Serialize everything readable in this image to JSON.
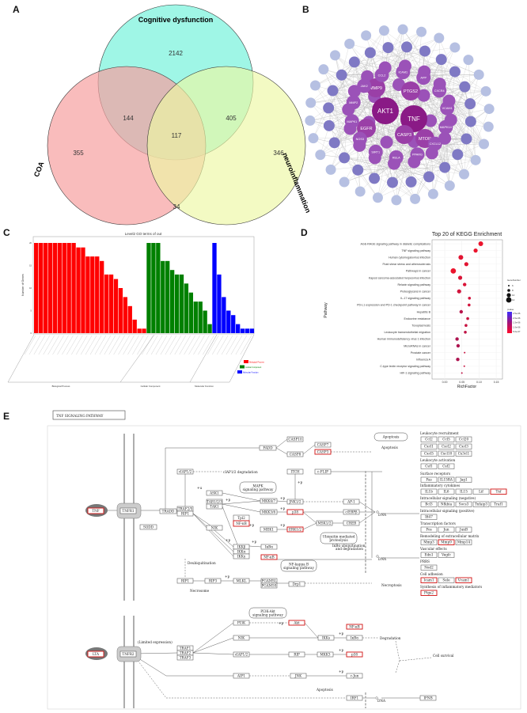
{
  "panels": {
    "a": "A",
    "b": "B",
    "c": "C",
    "d": "D",
    "e": "E"
  },
  "venn": {
    "sets": [
      "Cognitive dysfunction",
      "COA",
      "neuroinflammation"
    ],
    "only_cognitive": "2142",
    "only_coa": "355",
    "only_neuro": "346",
    "cog_coa": "144",
    "cog_neuro": "405",
    "coa_neuro": "34",
    "all_three": "117",
    "colors": {
      "cognitive": "#7ff3dd",
      "coa": "#f7a0a0",
      "neuro": "#ecf7a3"
    }
  },
  "network": {
    "hubs": [
      "AKT1",
      "TNF"
    ],
    "level2": [
      "EGFR",
      "CASP3",
      "MTOR",
      "PTGS2",
      "MMP9"
    ],
    "level3": [
      "ICAM1",
      "APP",
      "CXCR4",
      "VCAM1",
      "MAPK14",
      "CXCL12",
      "PPARG",
      "RELA",
      "SIRT1",
      "NOS3",
      "MAPK1",
      "MMP2",
      "JAK2",
      "CCL2"
    ],
    "colors": {
      "hub": "#8a1a86",
      "mid": "#9b52b8",
      "outer": "#7f79c4",
      "faint": "#b6c0e2"
    }
  },
  "chart_data": [
    {
      "type": "bar",
      "title": "Level2 GO terms of out",
      "ylabel": "Number of Genes",
      "xlabel": "",
      "ylim": [
        0,
        20
      ],
      "yticks": [
        "0",
        "5",
        "10",
        "15",
        "20"
      ],
      "series": [
        {
          "name": "Biological Process",
          "color": "#ff0000",
          "values": [
            20,
            20,
            20,
            20,
            20,
            20,
            20,
            20,
            20,
            19,
            19,
            17,
            17,
            17,
            16,
            13,
            13,
            12,
            10,
            8,
            6,
            3,
            1,
            1
          ]
        },
        {
          "name": "Cellular Component",
          "color": "#008000",
          "values": [
            20,
            20,
            20,
            16,
            16,
            14,
            13,
            13,
            11,
            9,
            7,
            7,
            5,
            2
          ]
        },
        {
          "name": "Molecular Function",
          "color": "#0000ff",
          "values": [
            20,
            13,
            8,
            5,
            4,
            2,
            1,
            1,
            1
          ]
        }
      ],
      "group_labels": [
        "Biological Process",
        "Cellular Component",
        "Molecular Function"
      ],
      "legend": [
        "Biological Process",
        "Cellular Component",
        "Molecular Function"
      ],
      "legend_position": "bottom-right"
    },
    {
      "type": "scatter",
      "title": "Top 20 of KEGG Enrichment",
      "xlabel": "RichFactor",
      "ylabel": "Pathway",
      "xlim": [
        -0.03,
        0.165
      ],
      "xticks": [
        "0.00",
        "0.05",
        "0.10",
        "0.15"
      ],
      "grid": true,
      "categories": [
        "AGE-RAGE signaling pathway in diabetic complications",
        "TNF signaling pathway",
        "Human cytomegalovirus infection",
        "Fluid shear stress and atherosclerosis",
        "Pathways in cancer",
        "Kaposi sarcoma-associated herpesvirus infection",
        "Relaxin signaling pathway",
        "Proteoglycans in cancer",
        "IL-17 signaling pathway",
        "PD-L1 expression and PD-1 checkpoint pathway in cancer",
        "Hepatitis B",
        "Endocrine resistance",
        "Toxoplasmosis",
        "Leukocyte transendothelial migration",
        "Human immunodeficiency virus 1 infection",
        "MicroRNAs in cancer",
        "Prostate cancer",
        "Influenza A",
        "C-type lectin receptor signaling pathway",
        "HIF-1 signaling pathway"
      ],
      "rich_factor": [
        0.105,
        0.09,
        0.047,
        0.063,
        0.025,
        0.045,
        0.058,
        0.042,
        0.072,
        0.071,
        0.048,
        0.067,
        0.062,
        0.06,
        0.036,
        0.039,
        0.058,
        0.038,
        0.057,
        0.05
      ],
      "gene_number": [
        11,
        10,
        11,
        10,
        12,
        10,
        9,
        10,
        8,
        8,
        9,
        8,
        8,
        8,
        9,
        9,
        6,
        9,
        6,
        6
      ],
      "pvalue": [
        2e-07,
        2e-07,
        3e-07,
        3e-07,
        2e-07,
        4e-07,
        4e-07,
        5e-07,
        5e-07,
        5e-07,
        8e-07,
        6e-07,
        6e-07,
        7e-07,
        9e-07,
        9e-07,
        6e-07,
        9e-07,
        6e-07,
        7e-07
      ],
      "size_legend_title": "GeneNumber",
      "size_legend": [
        "6",
        "8",
        "10",
        "12"
      ],
      "color_legend_title": "pvalue",
      "color_legend": [
        "2.5e-06",
        "2.0e-06",
        "1.5e-06",
        "1.0e-06",
        "5.0e-07"
      ]
    }
  ],
  "pathway": {
    "title": "TNF SIGNALING PATHWAY",
    "nodes": {
      "tnf": "TNF",
      "tnfr1": "TNFR1",
      "sodd": "SODD",
      "tradd": "TRADD",
      "traf25": "TRAF2/5",
      "rip1": "RIP1",
      "ciap12": "cIAP1/2",
      "fadd": "FADD",
      "ask1": "ASK1",
      "tab123": "TAB1/2/3",
      "tak1": "TAK1",
      "mkk47": "MKK4/7",
      "mkk36": "MKK3/6",
      "mek1": "MEK1",
      "tpl2": "Tpl2",
      "nfkb1": "NF-κB",
      "nik": "NIK",
      "ikkb": "IKKβ",
      "ikka": "IKKα",
      "ikkg": "IKKγ",
      "ikba": "IκBα",
      "nfkb2": "NF-κB",
      "casp10": "CASP10",
      "casp8": "CASP8",
      "casp7": "CASP7",
      "casp3": "CASP3",
      "itch": "ITCH",
      "cflip": "c-FLIP",
      "jnk12": "JNK1/2",
      "ap1": "AP-1",
      "p38a": "p38",
      "cebpb": "c/EBPβ",
      "msk12": "MSK1/2",
      "creb": "CREB",
      "erk12": "ERK1/2",
      "rip1b": "RIP1",
      "rip3": "RIP3",
      "mlkl": "MLKL",
      "pgam5l": "PGAM5L",
      "pgam5s": "PGAM5S",
      "drp1": "Drp1",
      "pi3k": "PI3K",
      "akt": "Akt",
      "nik2": "NIK",
      "lta": "LTA",
      "tnfr2": "TNFR2",
      "traf1": "TRAF1",
      "traf2": "TRAF2",
      "traf3": "TRAF3",
      "ciap12b": "cIAP1/2",
      "rip": "RIP",
      "aip1": "AIP1",
      "jnk": "JNK",
      "nfkb3": "NF-κB",
      "ikk": "IKKs",
      "ikba2": "IκBα",
      "mkk3": "MKK3",
      "p38b": "p38",
      "cjun": "c-Jun",
      "irf1": "IRF1",
      "ifnb": "IFNB"
    },
    "sub_pathways": {
      "mapk": [
        "MAPK",
        "signaling pathway"
      ],
      "ubiq": [
        "Ubiquitin mediated",
        "proteolysis"
      ],
      "apop": [
        "Apoptosis"
      ],
      "nfkbp": [
        "NF-kappa B",
        "signaling pathway"
      ],
      "pi3kp": [
        "PI3K-Akt",
        "signaling pathway"
      ]
    },
    "notes": {
      "ciap_deg": "cIAP1/2 degradation",
      "apoptosis1": "Apoptosis",
      "ikba_deg1": "IκBα ubiquitination",
      "ikba_deg2": "and degradation",
      "deubiq": "Deubiquitination",
      "necrosome": "Necrosome",
      "necroptosis": "Necroptosis",
      "limited": "(Limited expression)",
      "degradation": "Degradation",
      "survival": "Cell survival",
      "apoptosis2": "Apoptosis",
      "dna": "DNA",
      "plus_p": "+p",
      "plus_u": "+u"
    },
    "gene_groups": [
      {
        "title": "Leukocyte recruitment",
        "rows": [
          [
            {
              "g": "Ccl2"
            },
            {
              "g": "Ccl5"
            },
            {
              "g": "Ccl20"
            }
          ],
          [
            {
              "g": "Cxcl1"
            },
            {
              "g": "Cxcl2"
            },
            {
              "g": "Cxcl3"
            }
          ],
          [
            {
              "g": "Cxcl5"
            },
            {
              "g": "Cxcl10"
            },
            {
              "g": "Cx3cl1"
            }
          ]
        ]
      },
      {
        "title": "Leukocyte activation",
        "rows": [
          [
            {
              "g": "Csf1"
            },
            {
              "g": "Csf2"
            }
          ]
        ]
      },
      {
        "title": "Surface receptors",
        "rows": [
          [
            {
              "g": "Fas"
            },
            {
              "g": "IL15RA"
            },
            {
              "g": "Jag1"
            }
          ]
        ]
      },
      {
        "title": "Inflammatory cytokines",
        "rows": [
          [
            {
              "g": "IL1b"
            },
            {
              "g": "IL6"
            },
            {
              "g": "IL15"
            },
            {
              "g": "Lif"
            },
            {
              "g": "Tnf",
              "red": true
            }
          ]
        ]
      },
      {
        "title": "Intracellular signaling (negative)",
        "rows": [
          [
            {
              "g": "Bcl3"
            },
            {
              "g": "Nfkbia"
            },
            {
              "g": "Socs3"
            },
            {
              "g": "Tnfaip3"
            },
            {
              "g": "Traf1"
            }
          ]
        ]
      },
      {
        "title": "Intracellular signaling (positive)",
        "rows": [
          [
            {
              "g": "Ifi47"
            }
          ]
        ]
      },
      {
        "title": "Transcription factors",
        "rows": [
          [
            {
              "g": "Fos"
            },
            {
              "g": "Jun"
            },
            {
              "g": "JunB"
            }
          ]
        ]
      },
      {
        "title": "Remodeling of extracellular matrix",
        "rows": [
          [
            {
              "g": "Mmp3"
            },
            {
              "g": "Mmp9",
              "red": true
            },
            {
              "g": "Mmp14"
            }
          ]
        ]
      },
      {
        "title": "Vascular effects",
        "rows": [
          [
            {
              "g": "Edn1"
            },
            {
              "g": "Vegfc"
            }
          ]
        ]
      },
      {
        "title": "PRRS",
        "rows": [
          [
            {
              "g": "Nod2"
            }
          ]
        ]
      },
      {
        "title": "Cell adhesion",
        "rows": [
          [
            {
              "g": "Icam1",
              "red": true
            },
            {
              "g": "Sele"
            },
            {
              "g": "Vcam1",
              "red": true
            }
          ]
        ]
      },
      {
        "title": "Synthesis of inflammatory mediators",
        "rows": [
          [
            {
              "g": "Ptgs2",
              "red": true
            }
          ]
        ]
      }
    ]
  }
}
